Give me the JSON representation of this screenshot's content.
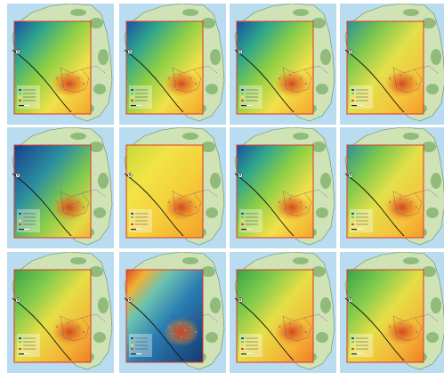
{
  "maps": [
    {
      "scheme": "blue-tl"
    },
    {
      "scheme": "blue-tl"
    },
    {
      "scheme": "blue-tl"
    },
    {
      "scheme": "teal-tl"
    },
    {
      "scheme": "blue-heavy"
    },
    {
      "scheme": "yellow"
    },
    {
      "scheme": "blue-tl"
    },
    {
      "scheme": "teal-tl"
    },
    {
      "scheme": "green"
    },
    {
      "scheme": "inverted"
    },
    {
      "scheme": "green"
    },
    {
      "scheme": "green"
    }
  ],
  "colors": {
    "sea": "#b9dcf0",
    "land": "#cfe3b6",
    "forest": "#5c9a4a",
    "frame": "#e0342b",
    "hotspot": "#d2401a",
    "coast_line": "#111111",
    "border_line": "#7a2b7a"
  },
  "legend_icons": [
    "legend-swatch-icon"
  ],
  "compass": "north-arrow-icon"
}
